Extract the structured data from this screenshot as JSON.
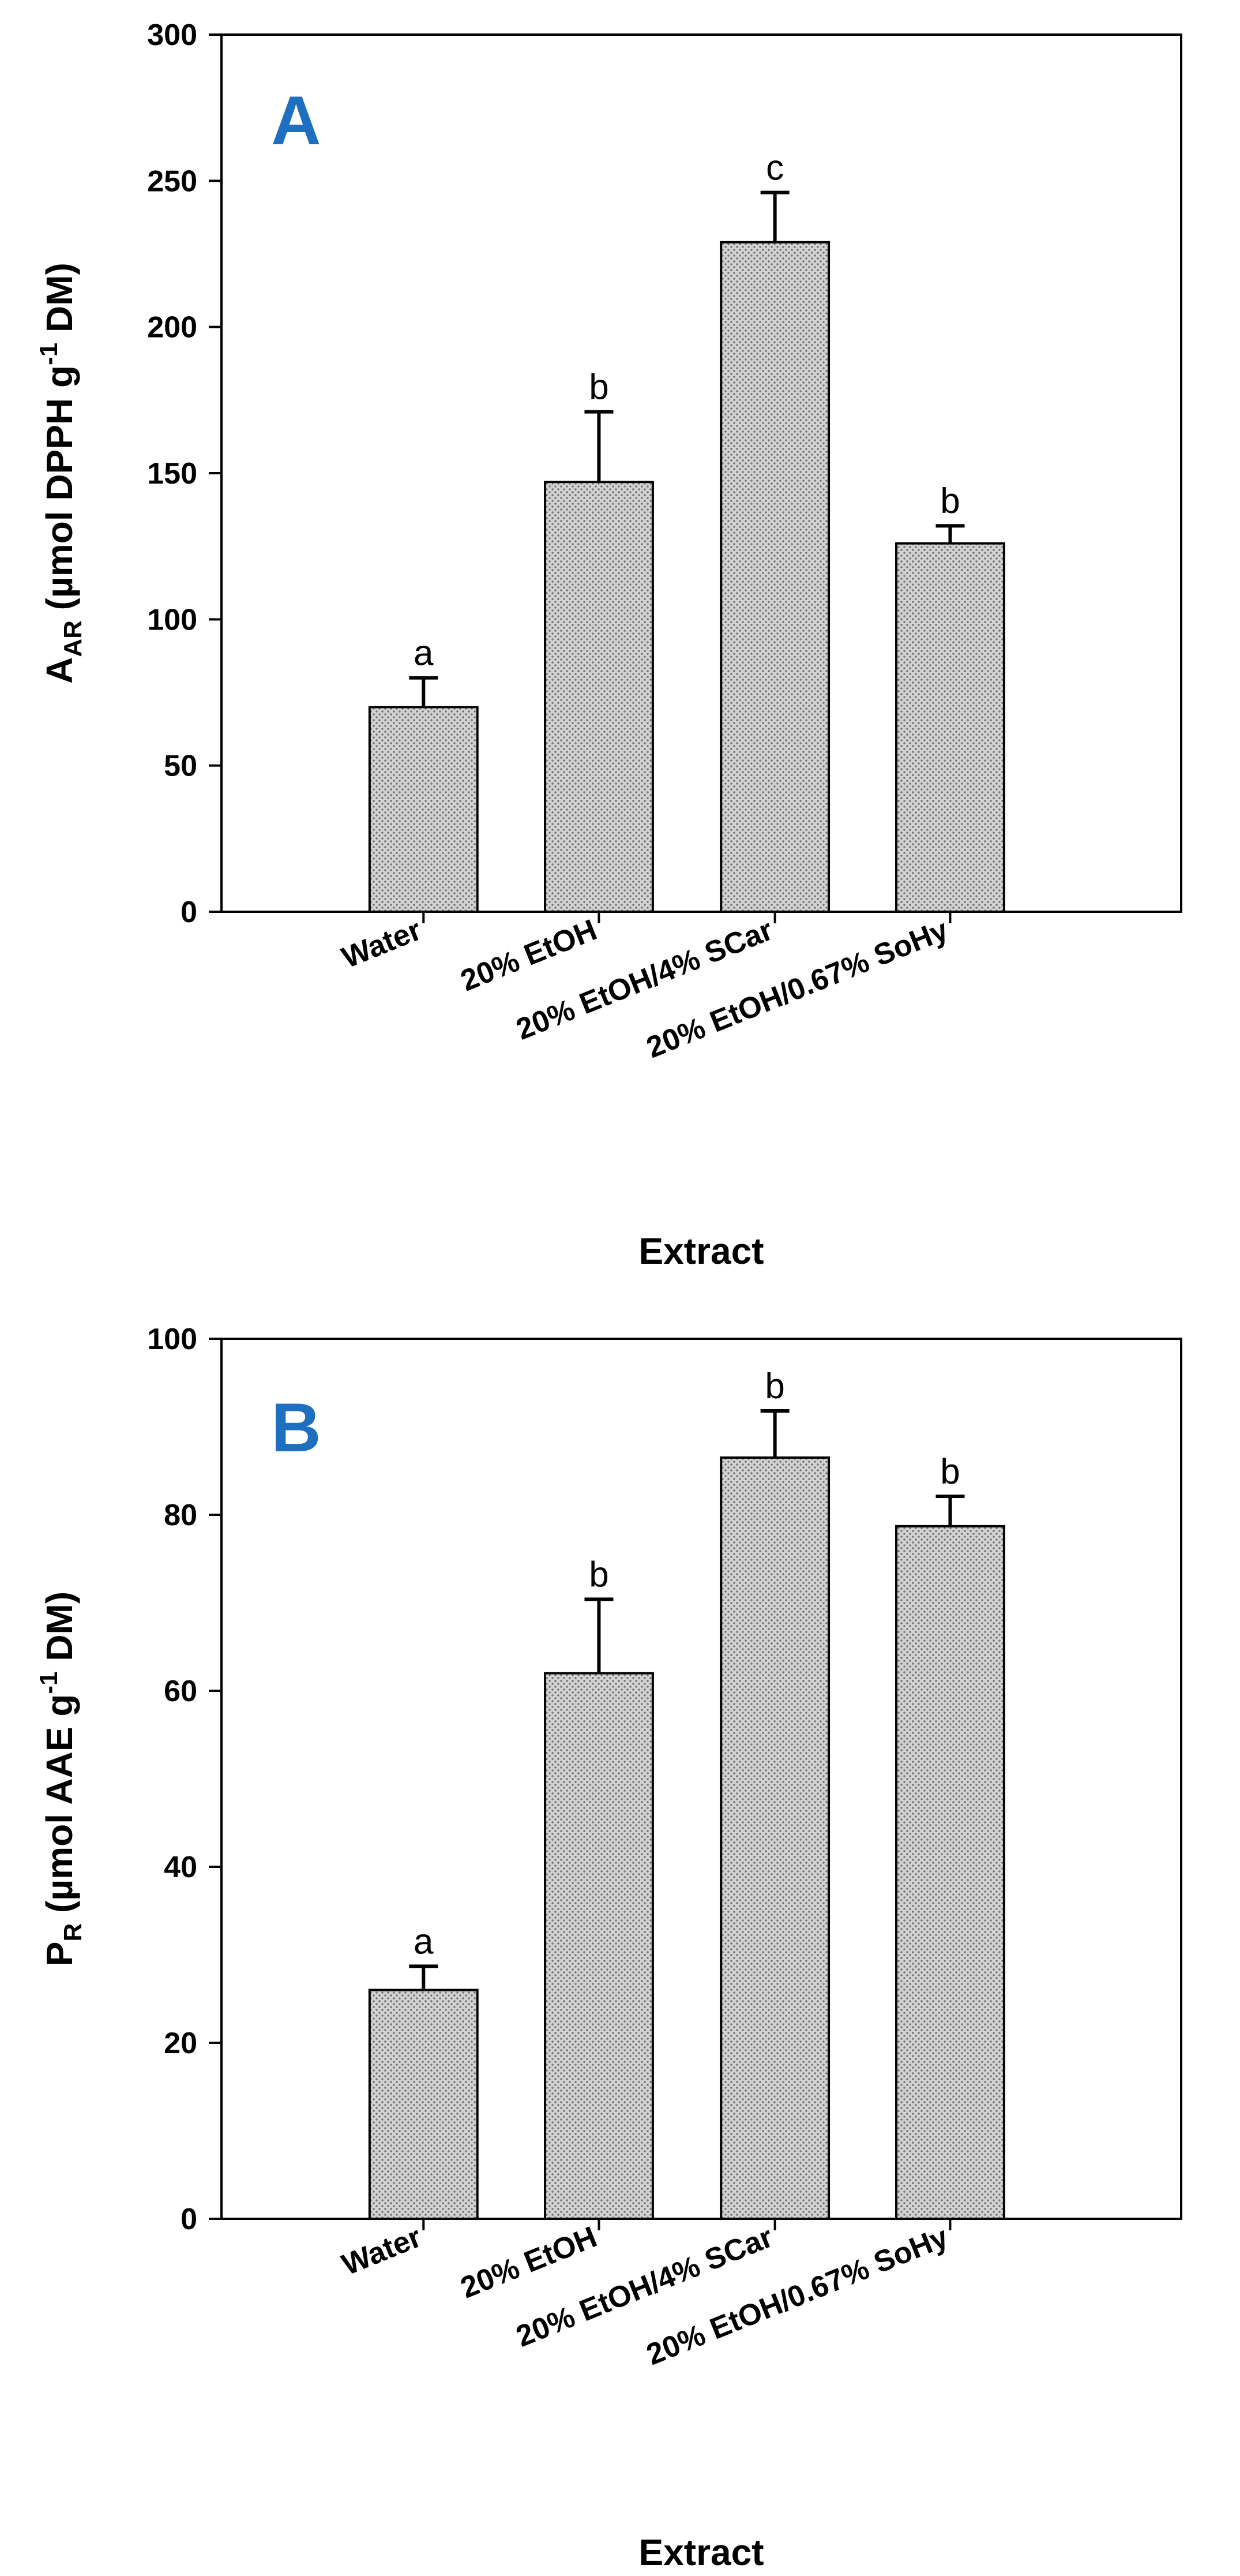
{
  "colors": {
    "bar_fill": "#d2d2d2",
    "bar_dot": "#6e6e6e",
    "panel_letter": "#1f6fc0",
    "axis": "#000000"
  },
  "chart_data": [
    {
      "type": "bar",
      "panel_label": "A",
      "categories": [
        "Water",
        "20% EtOH",
        "20% EtOH/4% SCar",
        "20% EtOH/0.67% SoHy"
      ],
      "values": [
        70,
        147,
        229,
        126
      ],
      "errors": [
        10,
        24,
        17,
        6
      ],
      "significance": [
        "a",
        "b",
        "c",
        "b"
      ],
      "ylim": [
        0,
        300
      ],
      "yticks": [
        0,
        50,
        100,
        150,
        200,
        250,
        300
      ],
      "ylabel": {
        "main": "A",
        "subscript": "AR",
        "rest_1": " (µmol DPPH g",
        "superscript": "-1",
        "rest_2": " DM)"
      },
      "xlabel": "Extract",
      "grid": false
    },
    {
      "type": "bar",
      "panel_label": "B",
      "categories": [
        "Water",
        "20% EtOH",
        "20% EtOH/4% SCar",
        "20% EtOH/0.67% SoHy"
      ],
      "values": [
        26,
        62,
        86.5,
        78.7
      ],
      "errors": [
        2.7,
        8.4,
        5.3,
        3.4
      ],
      "significance": [
        "a",
        "b",
        "b",
        "b"
      ],
      "ylim": [
        0,
        100
      ],
      "yticks": [
        0,
        20,
        40,
        60,
        80,
        100
      ],
      "ylabel": {
        "main": "P",
        "subscript": "R",
        "rest_1": " (µmol AAE g",
        "superscript": "-1",
        "rest_2": " DM)"
      },
      "xlabel": "Extract",
      "grid": false
    }
  ]
}
